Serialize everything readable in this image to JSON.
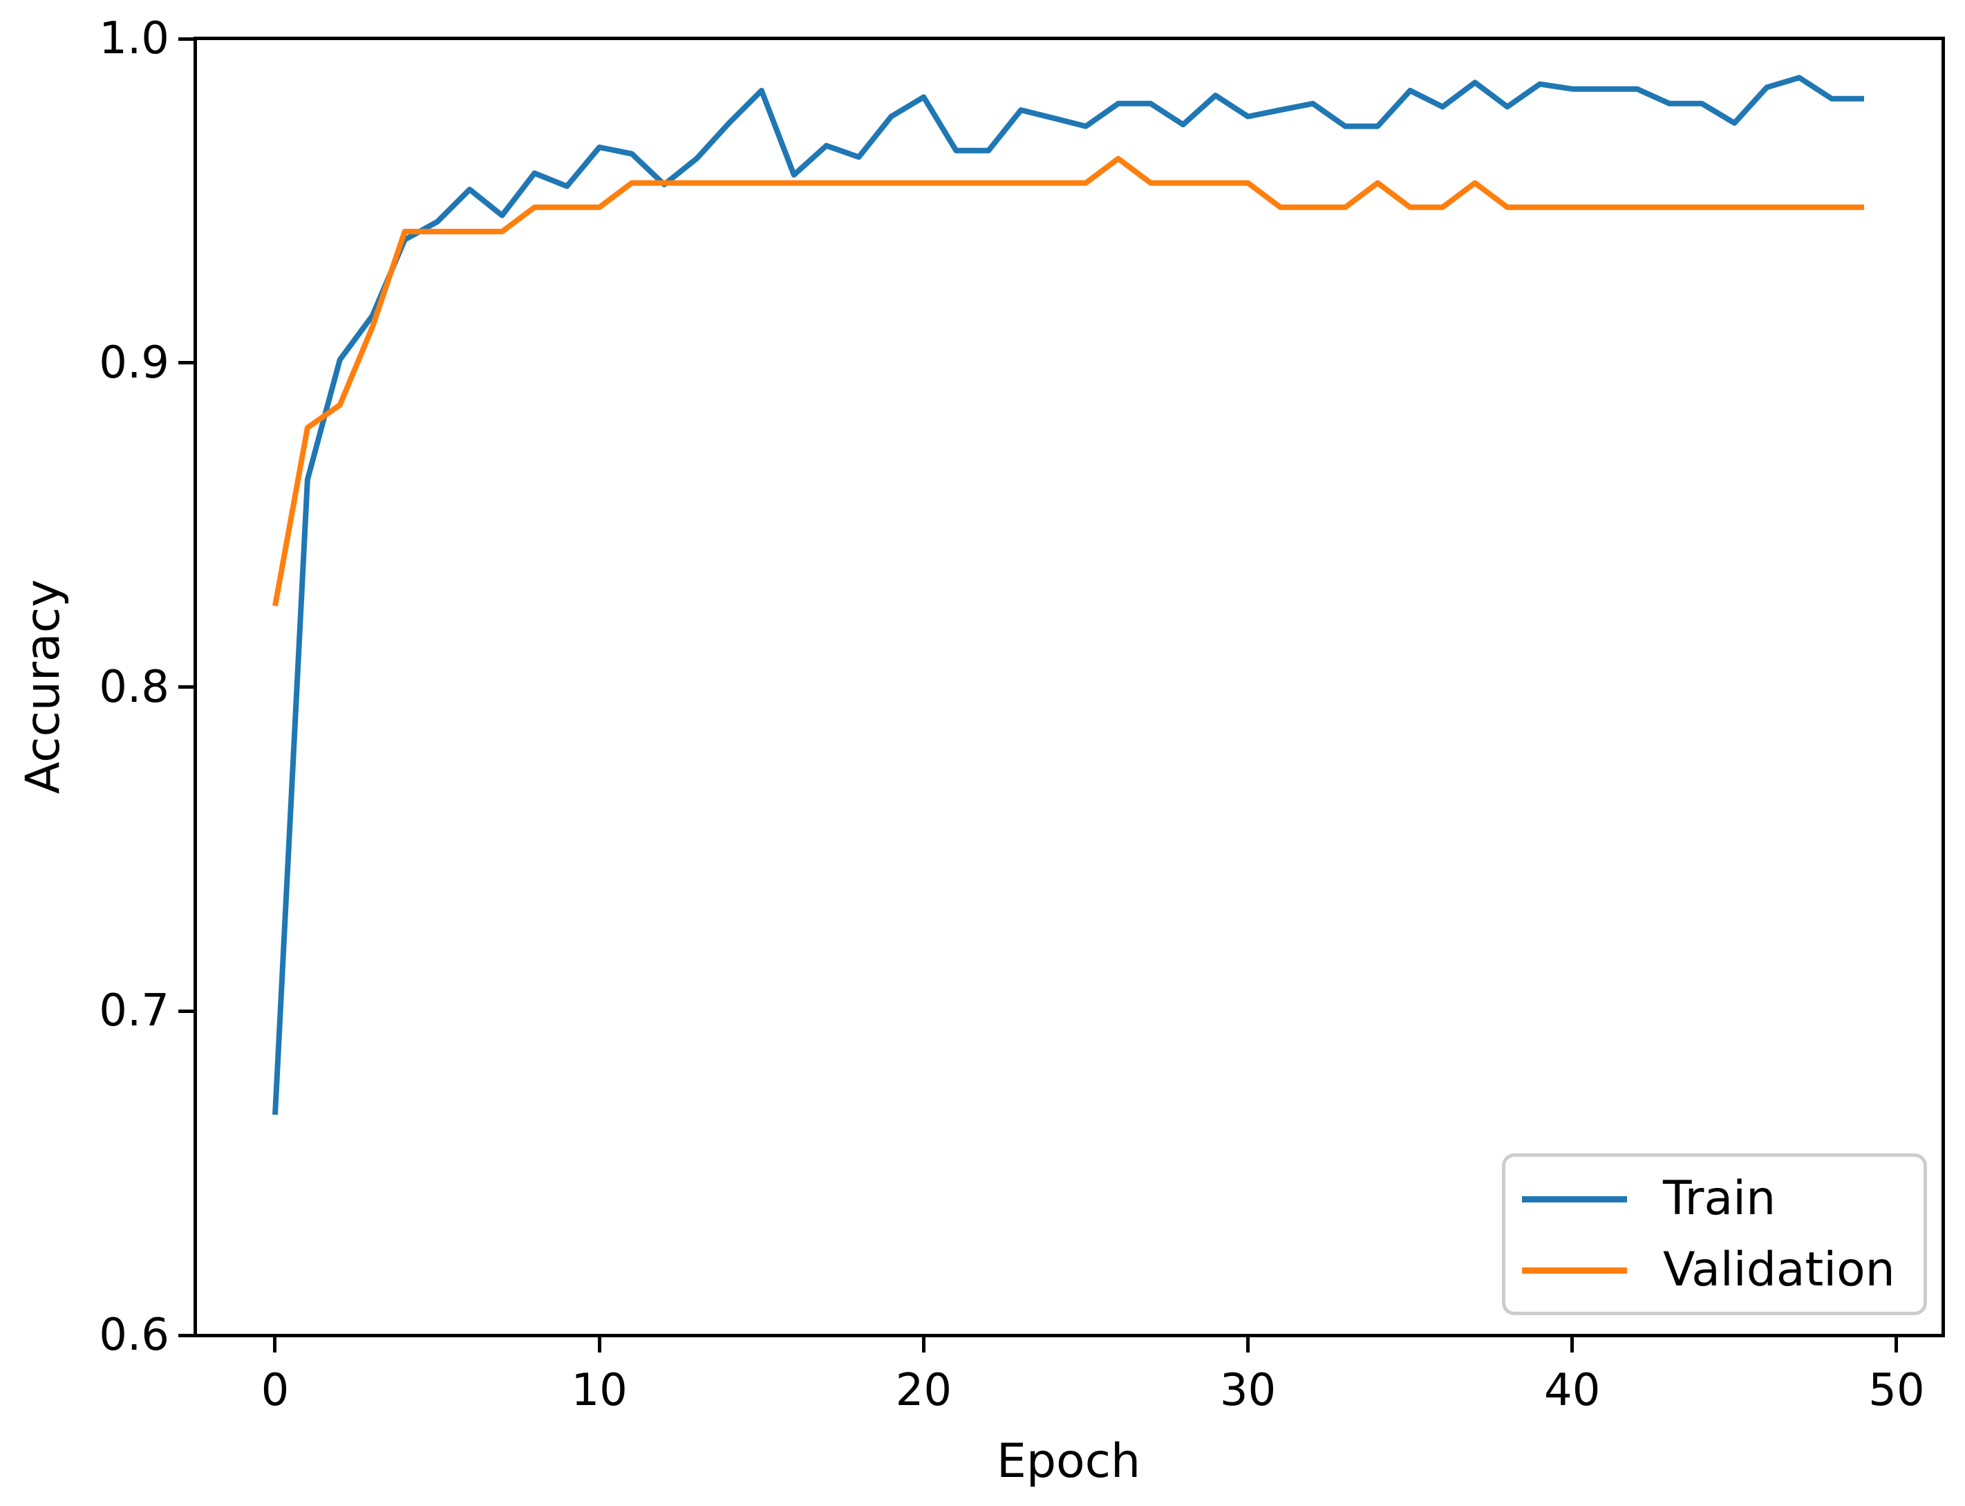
{
  "figure": {
    "background": "#ffffff",
    "text_color": "#000000",
    "spine_color": "#000000"
  },
  "chart_data": {
    "type": "line",
    "title": "",
    "xlabel": "Epoch",
    "ylabel": "Accuracy",
    "xlim": [
      -2.45,
      51.45
    ],
    "ylim": [
      0.6,
      1.0
    ],
    "x_ticks": [
      0,
      10,
      20,
      30,
      40,
      50
    ],
    "y_ticks": [
      "0.6",
      "0.7",
      "0.8",
      "0.9",
      "1.0"
    ],
    "grid": false,
    "legend_position": "lower right",
    "x": [
      0,
      1,
      2,
      3,
      4,
      5,
      6,
      7,
      8,
      9,
      10,
      11,
      12,
      13,
      14,
      15,
      16,
      17,
      18,
      19,
      20,
      21,
      22,
      23,
      24,
      25,
      26,
      27,
      28,
      29,
      30,
      31,
      32,
      33,
      34,
      35,
      36,
      37,
      38,
      39,
      40,
      41,
      42,
      43,
      44,
      45,
      46,
      47,
      48,
      49
    ],
    "series": [
      {
        "name": "Train",
        "color": "#1f77b4",
        "values": [
          0.668,
          0.864,
          0.901,
          0.9145,
          0.938,
          0.9435,
          0.9535,
          0.9455,
          0.9585,
          0.9545,
          0.9665,
          0.9645,
          0.955,
          0.963,
          0.974,
          0.984,
          0.958,
          0.967,
          0.9635,
          0.976,
          0.982,
          0.9655,
          0.9655,
          0.978,
          0.9755,
          0.973,
          0.98,
          0.98,
          0.9735,
          0.9825,
          0.976,
          0.978,
          0.98,
          0.973,
          0.973,
          0.984,
          0.979,
          0.9865,
          0.979,
          0.986,
          0.9845,
          0.9845,
          0.9845,
          0.98,
          0.98,
          0.974,
          0.985,
          0.988,
          0.9815,
          0.9815
        ]
      },
      {
        "name": "Validation",
        "color": "#ff7f0e",
        "values": [
          0.825,
          0.88,
          0.887,
          0.911,
          0.9405,
          0.9405,
          0.9405,
          0.9405,
          0.948,
          0.948,
          0.948,
          0.9555,
          0.9555,
          0.9555,
          0.9555,
          0.9555,
          0.9555,
          0.9555,
          0.9555,
          0.9555,
          0.9555,
          0.9555,
          0.9555,
          0.9555,
          0.9555,
          0.9555,
          0.963,
          0.9555,
          0.9555,
          0.9555,
          0.9555,
          0.948,
          0.948,
          0.948,
          0.9555,
          0.948,
          0.948,
          0.9555,
          0.948,
          0.948,
          0.948,
          0.948,
          0.948,
          0.948,
          0.948,
          0.948,
          0.948,
          0.948,
          0.948,
          0.948
        ]
      }
    ]
  },
  "legend": {
    "items": [
      {
        "label": "Train",
        "color": "#1f77b4"
      },
      {
        "label": "Validation",
        "color": "#ff7f0e"
      }
    ]
  }
}
